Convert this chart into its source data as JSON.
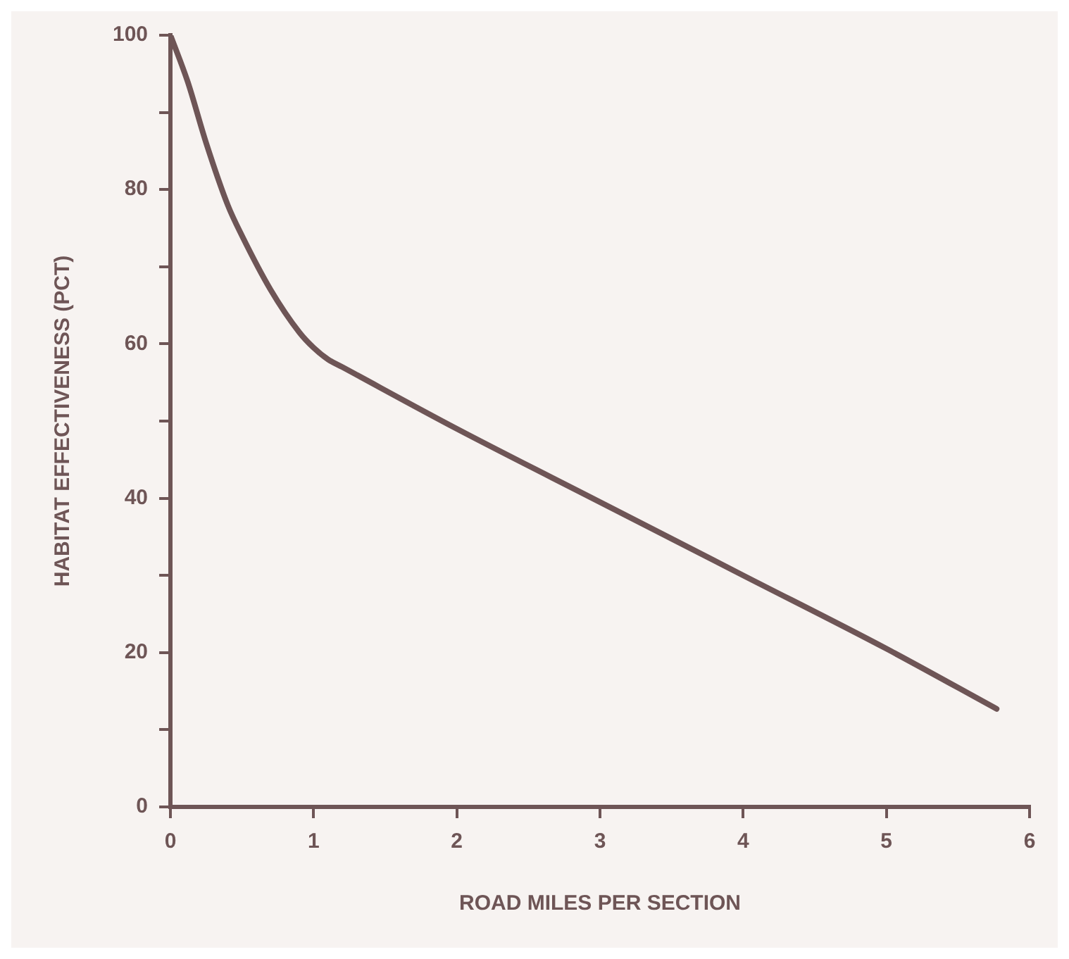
{
  "chart_data": {
    "type": "line",
    "xlabel": "ROAD MILES PER SECTION",
    "ylabel": "HABITAT EFFECTIVENESS (PCT)",
    "x": [
      0,
      0.12,
      0.25,
      0.4,
      0.5,
      0.7,
      0.9,
      1.0,
      1.1,
      1.2,
      2,
      3,
      4,
      5,
      5.77
    ],
    "series": [
      {
        "color": "#6e5556",
        "values": [
          100,
          94,
          86,
          78,
          74,
          67,
          61.5,
          59.5,
          58,
          57,
          49,
          39.5,
          30,
          20.5,
          12.7
        ]
      }
    ],
    "xlim": [
      0,
      6
    ],
    "xticks": [
      0,
      1,
      2,
      3,
      4,
      5,
      6
    ],
    "ylim": [
      0,
      100
    ],
    "yticks": [
      0,
      {
        "value": 10,
        "label": null
      },
      20,
      {
        "value": 30,
        "label": null
      },
      40,
      {
        "value": 50,
        "label": null
      },
      60,
      {
        "value": 70,
        "label": null
      },
      80,
      {
        "value": 90,
        "label": null
      },
      100
    ],
    "grid": false,
    "legend": false,
    "marker": "none",
    "line_style": "solid"
  }
}
